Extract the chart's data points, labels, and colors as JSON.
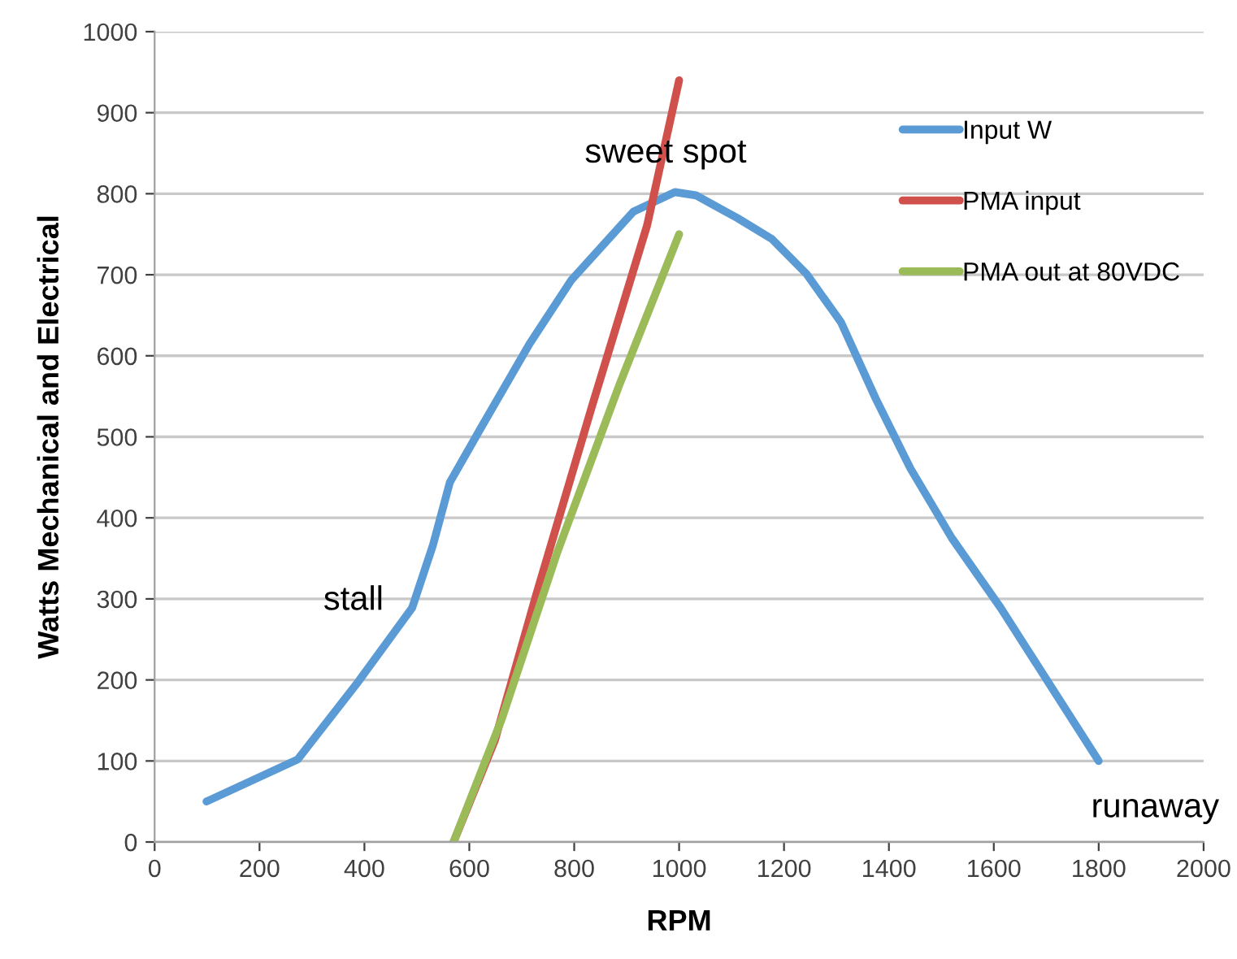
{
  "chart_data": {
    "type": "line",
    "xlabel": "RPM",
    "ylabel": "Watts Mechanical and Electrical",
    "xlim": [
      0,
      2000
    ],
    "xticks": [
      0,
      200,
      400,
      600,
      800,
      1000,
      1200,
      1400,
      1600,
      1800,
      2000
    ],
    "ylim": [
      0,
      1000
    ],
    "yticks": [
      0,
      100,
      200,
      300,
      400,
      500,
      600,
      700,
      800,
      900,
      1000
    ],
    "grid": "y",
    "legend": "right",
    "series": [
      {
        "name": "Input W",
        "color": "#5b9bd5",
        "x": [
          99,
          273,
          385,
          491,
          531,
          563,
          623,
          715,
          794,
          913,
          992,
          1032,
          1111,
          1177,
          1243,
          1309,
          1375,
          1441,
          1520,
          1613,
          1706,
          1800
        ],
        "values": [
          50,
          102,
          195,
          289,
          367,
          444,
          512,
          615,
          693,
          778,
          802,
          798,
          770,
          744,
          701,
          641,
          547,
          461,
          375,
          289,
          195,
          100
        ]
      },
      {
        "name": "PMA input",
        "color": "#d0504b",
        "x": [
          570,
          649,
          728,
          834,
          939,
          1000
        ],
        "values": [
          0,
          126,
          306,
          538,
          761,
          940
        ]
      },
      {
        "name": "PMA out at 80VDC",
        "color": "#9bbb59",
        "x": [
          570,
          662,
          768,
          886,
          1000
        ],
        "values": [
          0,
          152,
          358,
          564,
          750
        ]
      }
    ],
    "annotations": [
      {
        "text": "sweet spot",
        "x": 1000,
        "y": 802
      },
      {
        "text": "stall",
        "x": 491,
        "y": 289
      },
      {
        "text": "runaway",
        "x": 1800,
        "y": 100
      }
    ]
  }
}
